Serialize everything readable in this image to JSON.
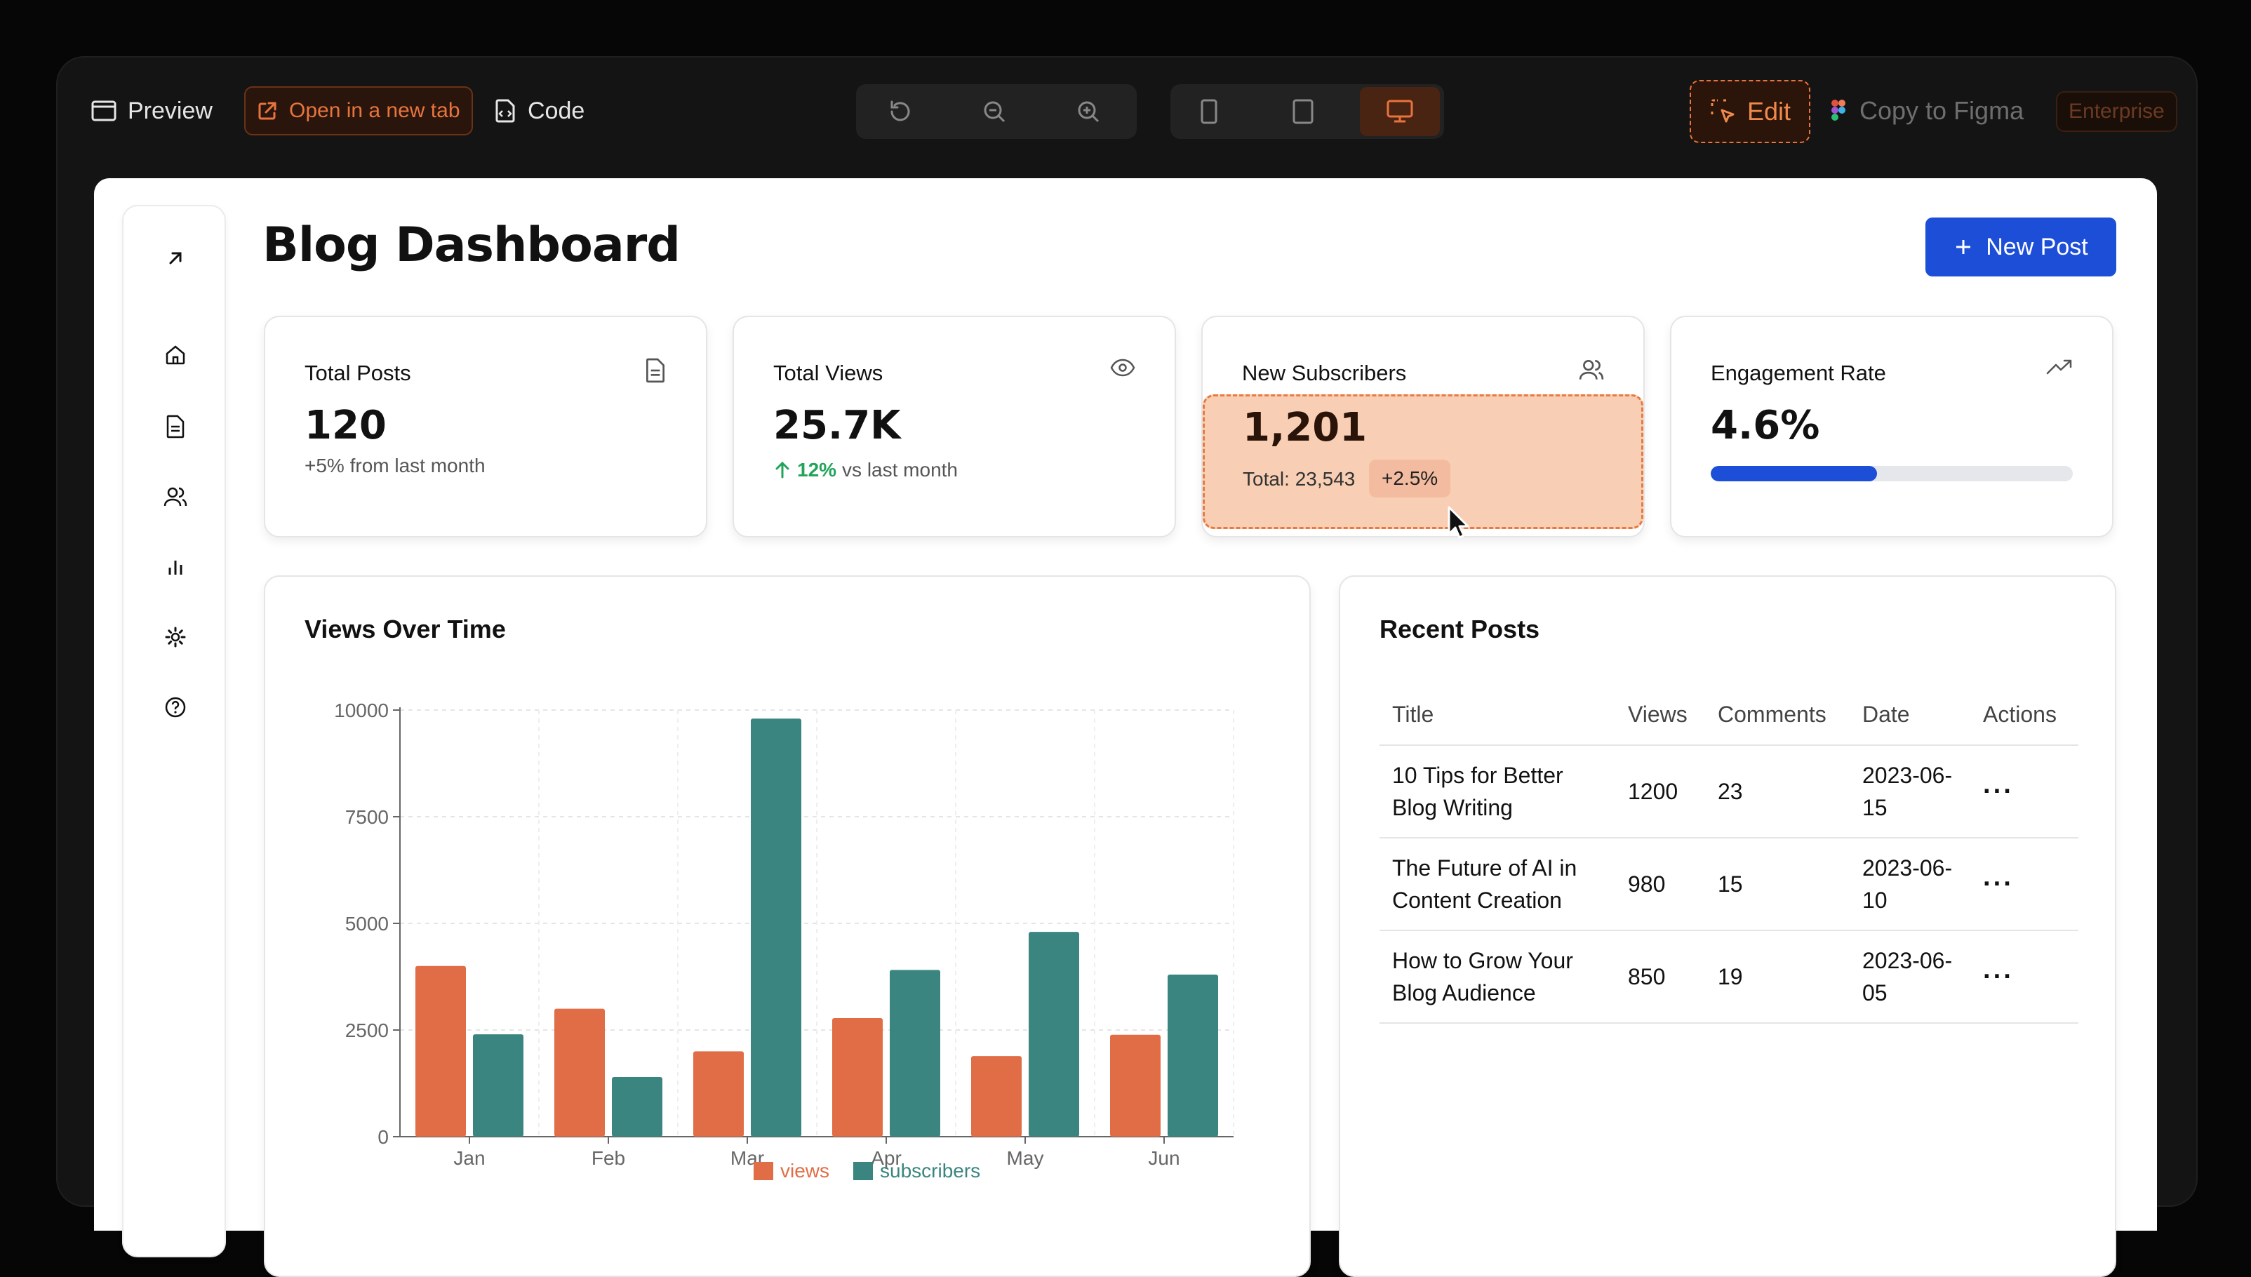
{
  "toolbar": {
    "preview_label": "Preview",
    "open_new_tab_label": "Open in a new tab",
    "code_label": "Code",
    "edit_label": "Edit",
    "copy_figma_label": "Copy to Figma",
    "enterprise_badge": "Enterprise"
  },
  "page": {
    "title": "Blog Dashboard",
    "new_post_label": "New Post"
  },
  "stats": {
    "total_posts": {
      "title": "Total Posts",
      "value": "120",
      "sub": "+5% from last month"
    },
    "total_views": {
      "title": "Total Views",
      "value": "25.7K",
      "change": "12%",
      "sub": "vs last month"
    },
    "new_subscribers": {
      "title": "New Subscribers",
      "value": "1,201",
      "total": "Total: 23,543",
      "change": "+2.5%"
    },
    "engagement": {
      "title": "Engagement Rate",
      "value": "4.6%",
      "progress_fraction": 0.46
    }
  },
  "chart_panel": {
    "title": "Views Over Time"
  },
  "chart_data": {
    "type": "bar",
    "categories": [
      "Jan",
      "Feb",
      "Mar",
      "Apr",
      "May",
      "Jun"
    ],
    "series": [
      {
        "name": "views",
        "values": [
          4000,
          3000,
          2000,
          2780,
          1890,
          2390
        ],
        "color": "#e06d46"
      },
      {
        "name": "subscribers",
        "values": [
          2400,
          1398,
          9800,
          3908,
          4800,
          3800
        ],
        "color": "#3a8580"
      }
    ],
    "ylim": [
      0,
      10000
    ],
    "yticks": [
      "0",
      "2500",
      "5000",
      "7500",
      "10000"
    ],
    "grid": true,
    "legend": "bottom"
  },
  "recent_posts": {
    "title": "Recent Posts",
    "headers": [
      "Title",
      "Views",
      "Comments",
      "Date",
      "Actions"
    ],
    "rows": [
      {
        "title": "10 Tips for Better Blog Writing",
        "views": "1200",
        "comments": "23",
        "date": "2023-06-15",
        "action": "···"
      },
      {
        "title": "The Future of AI in Content Creation",
        "views": "980",
        "comments": "15",
        "date": "2023-06-10",
        "action": "···"
      },
      {
        "title": "How to Grow Your Blog Audience",
        "views": "850",
        "comments": "19",
        "date": "2023-06-05",
        "action": "···"
      }
    ]
  },
  "colors": {
    "accent": "#1d4ed8",
    "orange": "#e8743d",
    "positive": "#22a35a"
  }
}
